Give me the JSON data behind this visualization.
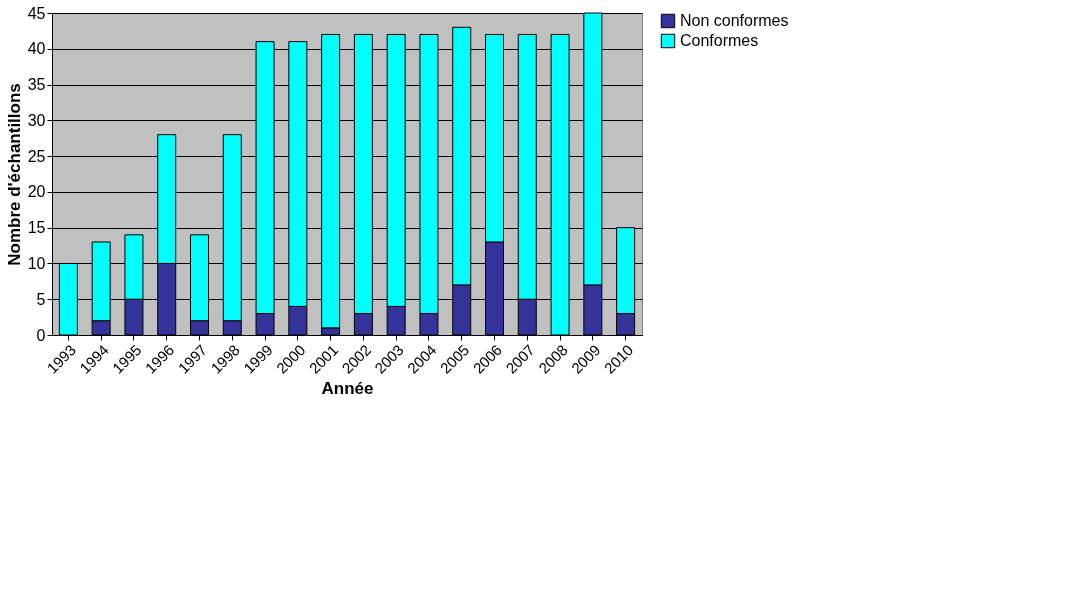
{
  "chart_data": {
    "type": "bar",
    "stacked": true,
    "xlabel": "Année",
    "ylabel": "Nombre d'échantillons",
    "categories": [
      "1993",
      "1994",
      "1995",
      "1996",
      "1997",
      "1998",
      "1999",
      "2000",
      "2001",
      "2002",
      "2003",
      "2004",
      "2005",
      "2006",
      "2007",
      "2008",
      "2009",
      "2010"
    ],
    "series": [
      {
        "name": "Non conformes",
        "color": "#333399",
        "values": [
          0,
          2,
          5,
          10,
          2,
          2,
          3,
          4,
          1,
          3,
          4,
          3,
          7,
          13,
          5,
          0,
          7,
          3
        ]
      },
      {
        "name": "Conformes",
        "color": "#00ffff",
        "values": [
          10,
          11,
          9,
          18,
          12,
          26,
          38,
          37,
          41,
          39,
          38,
          39,
          36,
          29,
          37,
          42,
          38,
          12
        ]
      }
    ],
    "ylim": [
      0,
      45
    ],
    "yticks": [
      0,
      5,
      10,
      15,
      20,
      25,
      30,
      35,
      40,
      45
    ],
    "grid": "y",
    "legend": "right"
  }
}
